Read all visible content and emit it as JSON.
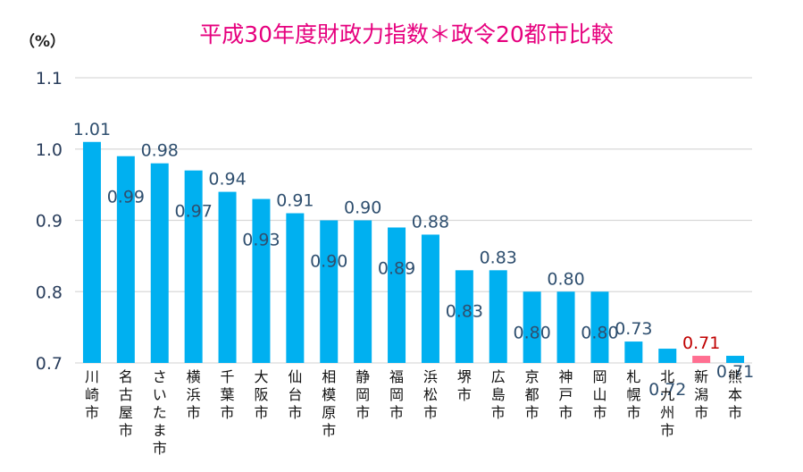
{
  "chart_data": {
    "type": "bar",
    "title": "平成30年度財政力指数＊政令20都市比較",
    "unit_label": "（%）",
    "ylim": [
      0.7,
      1.1
    ],
    "yticks": [
      "0.7",
      "0.8",
      "0.9",
      "1.0",
      "1.1"
    ],
    "grid": true,
    "categories": [
      "川崎市",
      "名古屋市",
      "さいたま市",
      "横浜市",
      "千葉市",
      "大阪市",
      "仙台市",
      "相模原市",
      "静岡市",
      "福岡市",
      "浜松市",
      "堺市",
      "広島市",
      "京都市",
      "神戸市",
      "岡山市",
      "札幌市",
      "北九州市",
      "新潟市",
      "熊本市"
    ],
    "values": [
      1.01,
      0.99,
      0.98,
      0.97,
      0.94,
      0.93,
      0.91,
      0.9,
      0.9,
      0.89,
      0.88,
      0.83,
      0.83,
      0.8,
      0.8,
      0.8,
      0.73,
      0.72,
      0.71,
      0.71
    ],
    "labels": [
      "1.01",
      "0.99",
      "0.98",
      "0.97",
      "0.94",
      "0.93",
      "0.91",
      "0.90",
      "0.90",
      "0.89",
      "0.88",
      "0.83",
      "0.83",
      "0.80",
      "0.80",
      "0.80",
      "0.73",
      "0.72",
      "0.71",
      "0.71"
    ],
    "highlight_category": "新潟市",
    "colors": {
      "bar": "#00b0f0",
      "highlight_bar": "#ff6f91",
      "label": "#2f4f6f",
      "highlight_label": "#c00000",
      "title": "#e6007e"
    }
  }
}
